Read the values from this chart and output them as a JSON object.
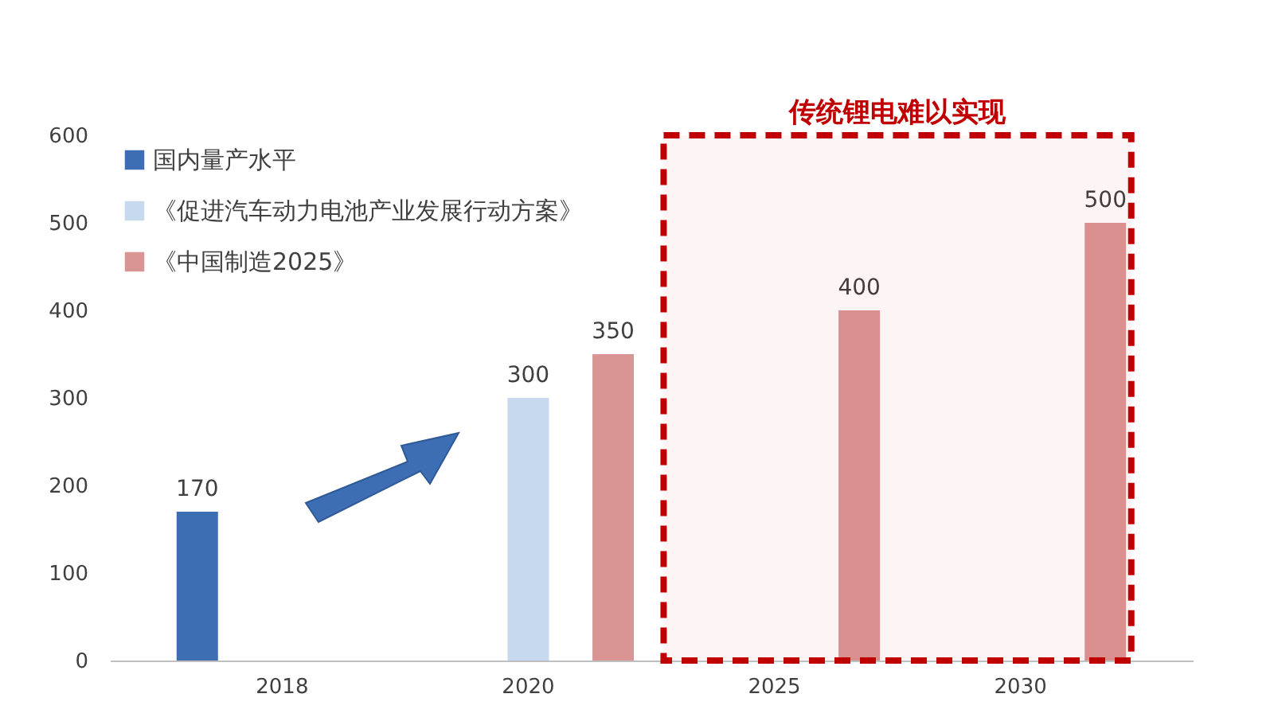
{
  "chart_data": {
    "type": "bar",
    "categories": [
      "2018",
      "2020",
      "2025",
      "2030"
    ],
    "series": [
      {
        "name": "国内量产水平",
        "color": "#3d6eb4",
        "values": [
          170,
          null,
          null,
          null
        ]
      },
      {
        "name": "《促进汽车动力电池产业发展行动方案》",
        "color": "#c6d9ef",
        "values": [
          null,
          300,
          null,
          null
        ]
      },
      {
        "name": "《中国制造2025》",
        "color": "#d99594",
        "values": [
          null,
          350,
          400,
          500
        ]
      }
    ],
    "ylim": [
      0,
      600
    ],
    "yticks": [
      0,
      100,
      200,
      300,
      400,
      500,
      600
    ],
    "grid": false,
    "legend": "top left",
    "data_labels": true,
    "bands": [
      {
        "axis": "x",
        "from": "2025",
        "to": "2030",
        "label": "传统锂电难以实现",
        "color": "#c00000"
      }
    ]
  }
}
